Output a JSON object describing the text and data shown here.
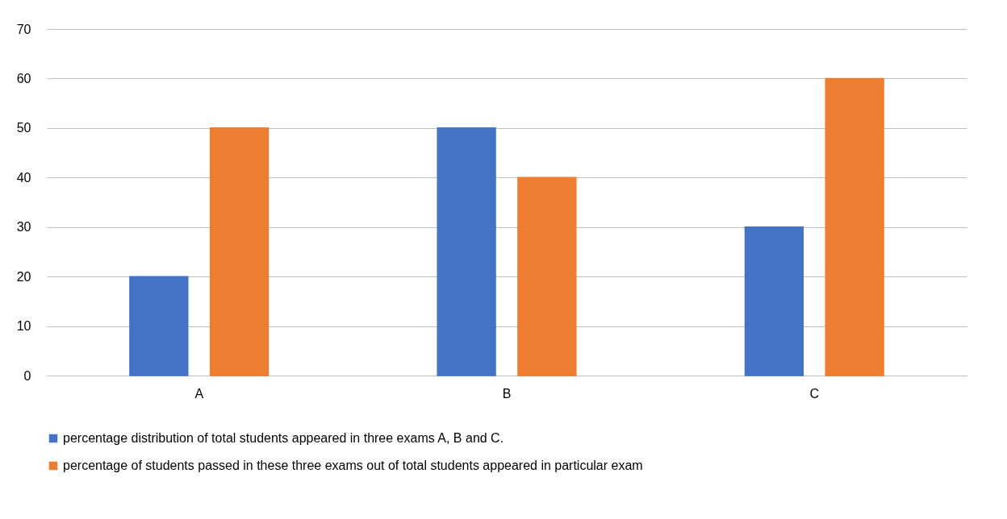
{
  "chart_data": {
    "type": "bar",
    "categories": [
      "A",
      "B",
      "C"
    ],
    "series": [
      {
        "name": "percentage distribution of total students appeared in three exams A, B and C.",
        "color": "#4472c4",
        "values": [
          20,
          50,
          30
        ]
      },
      {
        "name": "percentage of students passed in these three exams out of total students appeared in particular exam",
        "color": "#ed7d31",
        "values": [
          50,
          40,
          60
        ]
      }
    ],
    "ylim": [
      0,
      70
    ],
    "yticks": [
      0,
      10,
      20,
      30,
      40,
      50,
      60,
      70
    ],
    "grid": "y",
    "legend": "bottom"
  }
}
